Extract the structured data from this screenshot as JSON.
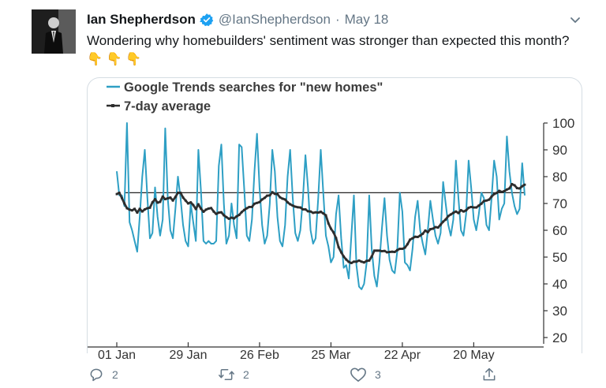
{
  "tweet": {
    "author_name": "Ian Shepherdson",
    "handle": "@IanShepherdson",
    "separator": "·",
    "date": "May 18",
    "text": "Wondering why homebuilders' sentiment was stronger than expected this month?",
    "emojis": [
      "👇",
      "👇",
      "👇"
    ]
  },
  "actions": {
    "reply_count": "2",
    "retweet_count": "2",
    "like_count": "3"
  },
  "colors": {
    "series_trends": "#2e9fc4",
    "series_avg": "#2d2d2d",
    "verified": "#1da1f2",
    "muted": "#657786"
  },
  "icons": {
    "verified": "verified-badge-icon",
    "caret": "chevron-down-icon",
    "reply": "reply-icon",
    "retweet": "retweet-icon",
    "like": "heart-icon",
    "share": "share-icon"
  },
  "chart_data": {
    "type": "line",
    "ylim": [
      20,
      100
    ],
    "yticks": [
      100,
      90,
      80,
      70,
      60,
      50,
      40,
      30,
      20
    ],
    "x_tick_labels": [
      "01 Jan",
      "29 Jan",
      "26 Feb",
      "25 Mar",
      "22 Apr",
      "20 May"
    ],
    "legend_position": "top-left",
    "reference_line": 74,
    "series": [
      {
        "name": "Google Trends searches for \"new homes\"",
        "values": [
          82,
          73,
          73,
          69,
          100,
          63,
          60,
          56,
          52,
          65,
          80,
          90,
          72,
          57,
          59,
          76,
          65,
          58,
          64,
          98,
          72,
          60,
          57,
          68,
          80,
          72,
          62,
          56,
          54,
          70,
          63,
          56,
          90,
          75,
          56,
          55,
          56,
          55,
          55,
          56,
          84,
          92,
          70,
          55,
          58,
          70,
          62,
          57,
          92,
          91,
          75,
          58,
          56,
          64,
          82,
          96,
          76,
          62,
          55,
          58,
          70,
          90,
          82,
          65,
          56,
          54,
          62,
          80,
          90,
          72,
          59,
          56,
          60,
          72,
          88,
          76,
          60,
          55,
          57,
          72,
          90,
          74,
          58,
          54,
          48,
          50,
          66,
          73,
          57,
          46,
          47,
          42,
          58,
          73,
          47,
          39,
          38,
          40,
          48,
          73,
          53,
          43,
          39,
          48,
          61,
          72,
          58,
          49,
          45,
          44,
          52,
          74,
          67,
          48,
          47,
          45,
          53,
          65,
          71,
          60,
          55,
          51,
          60,
          71,
          64,
          58,
          55,
          59,
          78,
          70,
          62,
          58,
          64,
          86,
          72,
          60,
          58,
          66,
          86,
          76,
          64,
          60,
          66,
          74,
          72,
          62,
          60,
          72,
          86,
          80,
          64,
          68,
          70,
          95,
          82,
          74,
          69,
          66,
          68,
          85,
          73
        ]
      },
      {
        "name": "7-day average",
        "values": [
          73.5,
          74.0,
          72.0,
          70.0,
          68.2,
          67.7,
          67.4,
          68.0,
          66.6,
          68.0,
          67.0,
          67.8,
          68.2,
          68.4,
          70.4,
          71.6,
          70.3,
          70.6,
          72.6,
          71.6,
          71.9,
          72.2,
          71.1,
          72.4,
          74.0,
          74.0,
          72.2,
          71.1,
          70.0,
          70.4,
          69.4,
          67.9,
          69.7,
          68.1,
          66.9,
          67.7,
          68.1,
          68.3,
          67.0,
          66.1,
          66.6,
          66.7,
          65.6,
          64.9,
          64.3,
          64.7,
          64.4,
          65.2,
          65.7,
          66.8,
          67.6,
          68.2,
          68.7,
          68.7,
          69.9,
          70.2,
          70.5,
          71.5,
          72.1,
          72.9,
          73.0,
          74.2,
          73.6,
          73.5,
          72.3,
          71.8,
          71.5,
          70.4,
          69.7,
          69.2,
          68.8,
          68.6,
          68.5,
          67.8,
          67.8,
          67.1,
          67.0,
          66.5,
          66.7,
          66.6,
          66.9,
          66.3,
          65.6,
          62.6,
          60.6,
          59.2,
          57.1,
          53.7,
          51.8,
          50.2,
          49.1,
          48.2,
          47.8,
          48.3,
          48.3,
          48.7,
          48.3,
          48.0,
          48.6,
          48.7,
          50.2,
          52.4,
          52.4,
          52.4,
          52.2,
          52.3,
          51.8,
          51.9,
          52.0,
          51.9,
          52.6,
          53.1,
          53.1,
          53.5,
          54.8,
          56.5,
          57.0,
          57.6,
          57.5,
          58.0,
          58.7,
          59.9,
          59.3,
          60.4,
          60.6,
          61.2,
          61.0,
          62.1,
          63.2,
          64.0,
          65.3,
          65.9,
          66.5,
          67.0,
          66.4,
          67.5,
          67.0,
          67.4,
          68.4,
          68.7,
          68.5,
          68.5,
          69.2,
          69.9,
          70.9,
          71.1,
          71.4,
          72.6,
          73.5,
          73.9,
          74.7,
          74.3,
          74.6,
          75.2,
          75.6,
          77.2,
          76.8,
          75.7,
          75.6,
          76.4,
          77.0
        ]
      }
    ]
  }
}
